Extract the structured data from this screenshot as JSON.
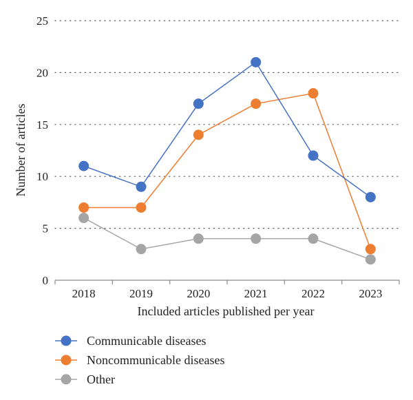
{
  "chart_data": {
    "type": "line",
    "title": "",
    "xlabel": "Included articles published per year",
    "ylabel": "Number of articles",
    "categories": [
      "2018",
      "2019",
      "2020",
      "2021",
      "2022",
      "2023"
    ],
    "ylim": [
      0,
      25
    ],
    "yticks": [
      "0",
      "5",
      "10",
      "15",
      "20",
      "25"
    ],
    "grid": "horizontal dotted",
    "legend_position": "bottom-left",
    "series": [
      {
        "name": "Communicable diseases",
        "color": "#4472C4",
        "values": [
          11,
          9,
          17,
          21,
          12,
          8
        ]
      },
      {
        "name": "Noncommunicable diseases",
        "color": "#ED7D31",
        "values": [
          7,
          7,
          14,
          17,
          18,
          3
        ]
      },
      {
        "name": "Other",
        "color": "#A5A5A5",
        "values": [
          6,
          3,
          4,
          4,
          4,
          2
        ]
      }
    ]
  }
}
